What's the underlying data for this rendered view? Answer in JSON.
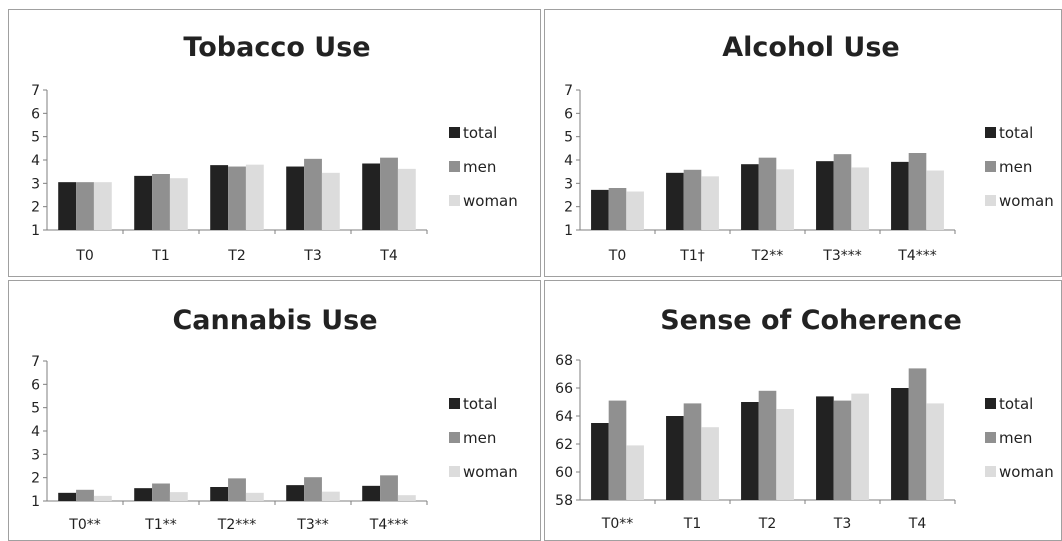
{
  "colors": {
    "total": "#222222",
    "men": "#909090",
    "woman": "#dcdcdc",
    "axis": "#7f7f7f"
  },
  "chart_data": [
    {
      "type": "bar",
      "title": "Tobacco Use",
      "categories": [
        "T0",
        "T1",
        "T2",
        "T3",
        "T4"
      ],
      "ylim": [
        1,
        7
      ],
      "yticks": [
        "1",
        "2",
        "3",
        "4",
        "5",
        "6",
        "7"
      ],
      "legend_position": "right",
      "series": [
        {
          "name": "total",
          "values": [
            3.05,
            3.32,
            3.78,
            3.72,
            3.85
          ]
        },
        {
          "name": "men",
          "values": [
            3.05,
            3.4,
            3.72,
            4.05,
            4.1
          ]
        },
        {
          "name": "woman",
          "values": [
            3.05,
            3.22,
            3.8,
            3.45,
            3.62
          ]
        }
      ]
    },
    {
      "type": "bar",
      "title": "Alcohol Use",
      "categories": [
        "T0",
        "T1†",
        "T2**",
        "T3***",
        "T4***"
      ],
      "ylim": [
        1,
        7
      ],
      "yticks": [
        "1",
        "2",
        "3",
        "4",
        "5",
        "6",
        "7"
      ],
      "legend_position": "right",
      "series": [
        {
          "name": "total",
          "values": [
            2.72,
            3.45,
            3.82,
            3.95,
            3.92
          ]
        },
        {
          "name": "men",
          "values": [
            2.8,
            3.58,
            4.1,
            4.25,
            4.3
          ]
        },
        {
          "name": "woman",
          "values": [
            2.65,
            3.3,
            3.6,
            3.68,
            3.55
          ]
        }
      ]
    },
    {
      "type": "bar",
      "title": "Cannabis Use",
      "categories": [
        "T0**",
        "T1**",
        "T2***",
        "T3**",
        "T4***"
      ],
      "ylim": [
        1,
        7
      ],
      "yticks": [
        "1",
        "2",
        "3",
        "4",
        "5",
        "6",
        "7"
      ],
      "legend_position": "right",
      "series": [
        {
          "name": "total",
          "values": [
            1.35,
            1.55,
            1.6,
            1.68,
            1.65
          ]
        },
        {
          "name": "men",
          "values": [
            1.48,
            1.75,
            1.97,
            2.02,
            2.1
          ]
        },
        {
          "name": "woman",
          "values": [
            1.22,
            1.38,
            1.35,
            1.4,
            1.25
          ]
        }
      ]
    },
    {
      "type": "bar",
      "title": "Sense of Coherence",
      "categories": [
        "T0**",
        "T1",
        "T2",
        "T3",
        "T4"
      ],
      "ylim": [
        58,
        68
      ],
      "yticks": [
        "58",
        "60",
        "62",
        "64",
        "66",
        "68"
      ],
      "legend_position": "right",
      "series": [
        {
          "name": "total",
          "values": [
            63.5,
            64.0,
            65.0,
            65.4,
            66.0
          ]
        },
        {
          "name": "men",
          "values": [
            65.1,
            64.9,
            65.8,
            65.1,
            67.4
          ]
        },
        {
          "name": "woman",
          "values": [
            61.9,
            63.2,
            64.5,
            65.6,
            64.9
          ]
        }
      ]
    }
  ]
}
